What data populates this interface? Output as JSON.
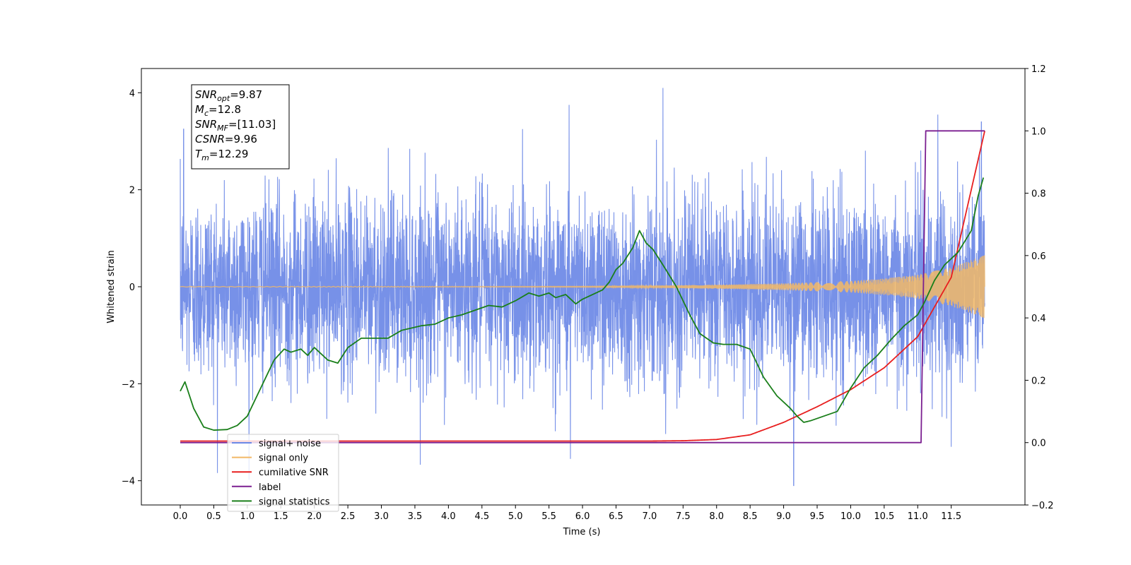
{
  "chart_data": {
    "type": "line",
    "title": "",
    "xlabel": "Time (s)",
    "ylabel": "Whitened strain",
    "xlim": [
      -0.58,
      12.6
    ],
    "ylim": [
      -4.5,
      4.5
    ],
    "y2lim": [
      -0.2,
      1.2
    ],
    "x_ticks": [
      0.0,
      0.5,
      1.0,
      1.5,
      2.0,
      2.5,
      3.0,
      3.5,
      4.0,
      4.5,
      5.0,
      5.5,
      6.0,
      6.5,
      7.0,
      7.5,
      8.0,
      8.5,
      9.0,
      9.5,
      10.0,
      10.5,
      11.0,
      11.5
    ],
    "x_tick_labels": [
      "0.0",
      "0.5",
      "1.0",
      "1.5",
      "2.0",
      "2.5",
      "3.0",
      "3.5",
      "4.0",
      "4.5",
      "5.0",
      "5.5",
      "6.0",
      "6.5",
      "7.0",
      "7.5",
      "8.0",
      "8.5",
      "9.0",
      "9.5",
      "10.0",
      "10.5",
      "11.0",
      "11.5"
    ],
    "y_ticks": [
      -4,
      -2,
      0,
      2,
      4
    ],
    "y_tick_labels": [
      "−4",
      "−2",
      "0",
      "2",
      "4"
    ],
    "y2_ticks": [
      -0.2,
      0.0,
      0.2,
      0.4,
      0.6,
      0.8,
      1.0,
      1.2
    ],
    "y2_tick_labels": [
      "−0.2",
      "0.0",
      "0.2",
      "0.4",
      "0.6",
      "0.8",
      "1.0",
      "1.2"
    ],
    "grid": false,
    "legend_position": "lower-left",
    "series": [
      {
        "name": "signal+ noise",
        "axis": "left",
        "color": "#6b88e6",
        "description_values": {
          "x_range": [
            0.0,
            12.0
          ],
          "typical_abs_amplitude": 1.2,
          "max": 4.1,
          "min": -4.1,
          "peaks": [
            [
              0.05,
              3.25
            ],
            [
              5.8,
              3.75
            ],
            [
              7.2,
              4.1
            ],
            [
              11.3,
              3.55
            ],
            [
              11.95,
              3.4
            ],
            [
              9.15,
              -4.1
            ],
            [
              5.82,
              -3.55
            ],
            [
              11.5,
              -3.3
            ]
          ]
        }
      },
      {
        "name": "signal only",
        "axis": "left",
        "color": "#f2b866",
        "envelope": {
          "x": [
            0.0,
            6.0,
            7.0,
            8.0,
            9.0,
            10.0,
            10.5,
            11.0,
            11.5,
            12.0
          ],
          "amp": [
            0.005,
            0.01,
            0.02,
            0.04,
            0.07,
            0.12,
            0.17,
            0.25,
            0.4,
            0.65
          ]
        }
      },
      {
        "name": "cumilative SNR",
        "axis": "right",
        "color": "#e81f1f",
        "x": [
          0.0,
          1.0,
          2.0,
          3.0,
          4.0,
          5.0,
          6.0,
          7.0,
          7.5,
          8.0,
          8.5,
          9.0,
          9.5,
          10.0,
          10.5,
          11.0,
          11.5,
          12.0
        ],
        "values": [
          0.005,
          0.005,
          0.005,
          0.005,
          0.005,
          0.005,
          0.005,
          0.005,
          0.006,
          0.01,
          0.025,
          0.065,
          0.115,
          0.17,
          0.24,
          0.34,
          0.53,
          1.0
        ]
      },
      {
        "name": "label",
        "axis": "right",
        "color": "#7b1f90",
        "x": [
          0.0,
          11.05,
          11.12,
          12.0
        ],
        "values": [
          0.0,
          0.0,
          1.0,
          1.0
        ]
      },
      {
        "name": "signal statistics",
        "axis": "right",
        "color": "#1a7f1a",
        "x": [
          0.0,
          0.07,
          0.2,
          0.35,
          0.5,
          0.7,
          0.85,
          1.0,
          1.2,
          1.4,
          1.55,
          1.65,
          1.8,
          1.9,
          2.0,
          2.2,
          2.35,
          2.5,
          2.7,
          2.9,
          3.1,
          3.3,
          3.5,
          3.6,
          3.8,
          4.0,
          4.2,
          4.4,
          4.6,
          4.8,
          5.0,
          5.2,
          5.35,
          5.5,
          5.6,
          5.75,
          5.9,
          6.0,
          6.15,
          6.3,
          6.4,
          6.5,
          6.6,
          6.75,
          6.85,
          6.95,
          7.05,
          7.2,
          7.4,
          7.6,
          7.75,
          7.95,
          8.1,
          8.3,
          8.5,
          8.7,
          8.9,
          9.1,
          9.2,
          9.3,
          9.4,
          9.6,
          9.8,
          10.0,
          10.2,
          10.4,
          10.6,
          10.8,
          11.0,
          11.1,
          11.25,
          11.4,
          11.6,
          11.8,
          11.9,
          11.98
        ],
        "values": [
          0.165,
          0.195,
          0.11,
          0.05,
          0.04,
          0.042,
          0.055,
          0.085,
          0.175,
          0.265,
          0.3,
          0.29,
          0.3,
          0.28,
          0.305,
          0.265,
          0.255,
          0.305,
          0.335,
          0.335,
          0.335,
          0.36,
          0.37,
          0.375,
          0.38,
          0.4,
          0.41,
          0.425,
          0.44,
          0.435,
          0.455,
          0.48,
          0.47,
          0.48,
          0.465,
          0.475,
          0.445,
          0.46,
          0.475,
          0.49,
          0.515,
          0.555,
          0.575,
          0.625,
          0.68,
          0.64,
          0.62,
          0.57,
          0.5,
          0.41,
          0.35,
          0.32,
          0.315,
          0.315,
          0.3,
          0.21,
          0.15,
          0.11,
          0.085,
          0.065,
          0.07,
          0.085,
          0.1,
          0.175,
          0.24,
          0.28,
          0.33,
          0.375,
          0.41,
          0.45,
          0.52,
          0.57,
          0.61,
          0.68,
          0.79,
          0.85
        ]
      }
    ],
    "annotation": {
      "lines": [
        {
          "base": "SNR",
          "sub": "opt",
          "rest": "=9.87"
        },
        {
          "base": "M",
          "sub": "c",
          "rest": "=12.8"
        },
        {
          "base": "SNR",
          "sub": "MF",
          "rest": "=[11.03]"
        },
        {
          "base": "CSNR",
          "sub": "",
          "rest": "=9.96"
        },
        {
          "base": "T",
          "sub": "m",
          "rest": "=12.29"
        }
      ]
    },
    "legend": [
      {
        "label": "signal+ noise",
        "color": "#6b88e6"
      },
      {
        "label": "signal only",
        "color": "#f2b866"
      },
      {
        "label": "cumilative SNR",
        "color": "#e81f1f"
      },
      {
        "label": "label",
        "color": "#7b1f90"
      },
      {
        "label": "signal statistics",
        "color": "#1a7f1a"
      }
    ]
  }
}
